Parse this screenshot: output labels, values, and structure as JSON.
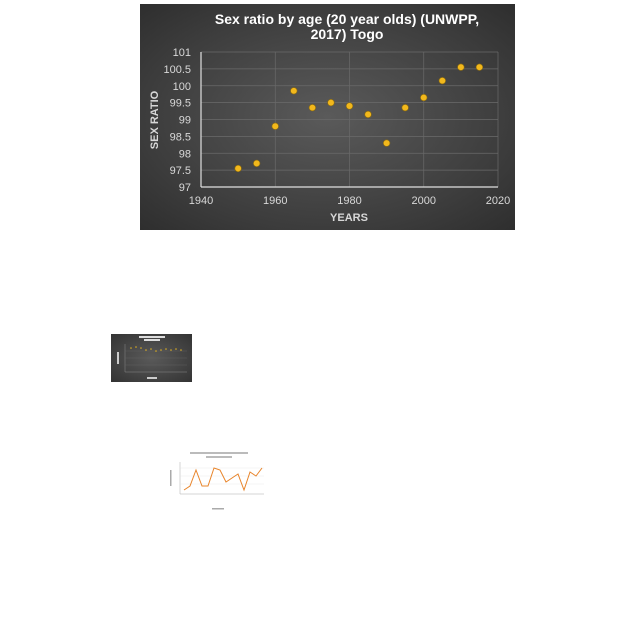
{
  "chart_data": {
    "type": "scatter",
    "title_line1": "Sex ratio by age (20 year olds) (UNWPP,",
    "title_line2": "2017) Togo",
    "xlabel": "YEARS",
    "ylabel": "SEX RATIO",
    "xlim": [
      1940,
      2020
    ],
    "ylim": [
      97,
      101
    ],
    "xticks": [
      "1940",
      "1960",
      "1980",
      "2000",
      "2020"
    ],
    "yticks": [
      "97",
      "97.5",
      "98",
      "98.5",
      "99",
      "99.5",
      "100",
      "100.5",
      "101"
    ],
    "grid": true,
    "marker_color": "#f2b81c",
    "points": [
      {
        "x": 1950,
        "y": 97.55
      },
      {
        "x": 1955,
        "y": 97.7
      },
      {
        "x": 1960,
        "y": 98.8
      },
      {
        "x": 1965,
        "y": 99.85
      },
      {
        "x": 1970,
        "y": 99.35
      },
      {
        "x": 1975,
        "y": 99.5
      },
      {
        "x": 1980,
        "y": 99.4
      },
      {
        "x": 1985,
        "y": 99.15
      },
      {
        "x": 1990,
        "y": 98.3
      },
      {
        "x": 1995,
        "y": 99.35
      },
      {
        "x": 2000,
        "y": 99.65
      },
      {
        "x": 2005,
        "y": 100.15
      },
      {
        "x": 2010,
        "y": 100.55
      },
      {
        "x": 2015,
        "y": 100.55
      }
    ]
  },
  "thumbnails": [
    {
      "name": "dark-chart-thumbnail",
      "style": "dark"
    },
    {
      "name": "line-chart-thumbnail",
      "style": "light",
      "line_color": "#e8842a"
    }
  ]
}
